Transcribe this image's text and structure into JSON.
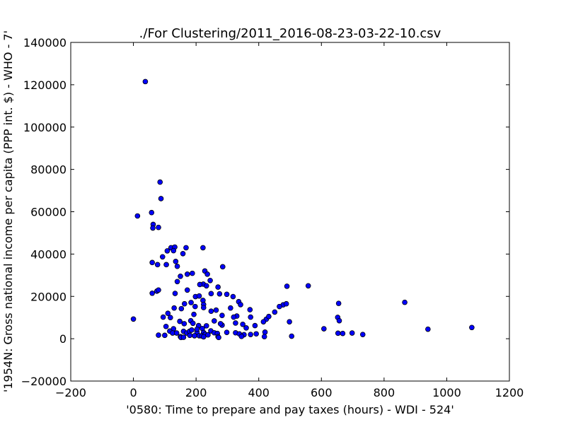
{
  "chart_data": {
    "type": "scatter",
    "title": "./For Clustering/2011_2016-08-23-03-22-10.csv",
    "xlabel": "'0580: Time to prepare and pay taxes  (hours) - WDI - 524'",
    "ylabel": "'1954N: Gross national income per capita (PPP int. $) - WHO - 7'",
    "xlim": [
      -200,
      1200
    ],
    "ylim": [
      -20000,
      140000
    ],
    "xticks": [
      "−200",
      "0",
      "200",
      "400",
      "600",
      "800",
      "1000",
      "1200"
    ],
    "yticks": [
      "−20000",
      "0",
      "20000",
      "40000",
      "60000",
      "80000",
      "100000",
      "120000",
      "140000"
    ],
    "grid": false,
    "marker_color": "#0000ff",
    "points": [
      [
        38,
        121500
      ],
      [
        85,
        74000
      ],
      [
        88,
        66200
      ],
      [
        13,
        58000
      ],
      [
        58,
        59600
      ],
      [
        63,
        54000
      ],
      [
        62,
        52300
      ],
      [
        80,
        52600
      ],
      [
        60,
        36000
      ],
      [
        77,
        35000
      ],
      [
        93,
        38700
      ],
      [
        105,
        35000
      ],
      [
        108,
        41500
      ],
      [
        120,
        43000
      ],
      [
        132,
        43300
      ],
      [
        128,
        41600
      ],
      [
        135,
        36500
      ],
      [
        140,
        34200
      ],
      [
        158,
        40200
      ],
      [
        168,
        43000
      ],
      [
        222,
        43000
      ],
      [
        172,
        30500
      ],
      [
        188,
        30900
      ],
      [
        228,
        32000
      ],
      [
        236,
        30500
      ],
      [
        285,
        34000
      ],
      [
        140,
        27000
      ],
      [
        150,
        29500
      ],
      [
        223,
        25800
      ],
      [
        212,
        25600
      ],
      [
        233,
        25000
      ],
      [
        245,
        27500
      ],
      [
        270,
        24400
      ],
      [
        490,
        24800
      ],
      [
        558,
        25000
      ],
      [
        60,
        21500
      ],
      [
        75,
        22500
      ],
      [
        80,
        23000
      ],
      [
        133,
        21400
      ],
      [
        172,
        23000
      ],
      [
        198,
        19900
      ],
      [
        210,
        20200
      ],
      [
        248,
        21300
      ],
      [
        275,
        21200
      ],
      [
        298,
        21000
      ],
      [
        318,
        19900
      ],
      [
        222,
        18100
      ],
      [
        163,
        16500
      ],
      [
        184,
        17100
      ],
      [
        224,
        16200
      ],
      [
        336,
        17500
      ],
      [
        342,
        16100
      ],
      [
        478,
        16000
      ],
      [
        488,
        16500
      ],
      [
        655,
        16700
      ],
      [
        866,
        17200
      ],
      [
        197,
        15200
      ],
      [
        153,
        14200
      ],
      [
        130,
        14500
      ],
      [
        110,
        12000
      ],
      [
        95,
        10200
      ],
      [
        118,
        10000
      ],
      [
        193,
        11500
      ],
      [
        224,
        14700
      ],
      [
        248,
        13000
      ],
      [
        264,
        13500
      ],
      [
        283,
        11000
      ],
      [
        310,
        14500
      ],
      [
        372,
        13700
      ],
      [
        451,
        12600
      ],
      [
        466,
        15200
      ],
      [
        330,
        10700
      ],
      [
        320,
        10200
      ],
      [
        374,
        10200
      ],
      [
        424,
        9200
      ],
      [
        415,
        8000
      ],
      [
        432,
        10500
      ],
      [
        498,
        8000
      ],
      [
        652,
        10100
      ],
      [
        657,
        8500
      ],
      [
        0,
        9300
      ],
      [
        148,
        8200
      ],
      [
        162,
        7100
      ],
      [
        183,
        8500
      ],
      [
        190,
        7300
      ],
      [
        208,
        6200
      ],
      [
        233,
        6100
      ],
      [
        258,
        8400
      ],
      [
        283,
        6400
      ],
      [
        278,
        7100
      ],
      [
        326,
        7400
      ],
      [
        349,
        6800
      ],
      [
        388,
        6200
      ],
      [
        360,
        5100
      ],
      [
        104,
        5800
      ],
      [
        128,
        4700
      ],
      [
        116,
        3600
      ],
      [
        125,
        2700
      ],
      [
        138,
        2700
      ],
      [
        160,
        3500
      ],
      [
        170,
        2700
      ],
      [
        179,
        3500
      ],
      [
        186,
        4100
      ],
      [
        203,
        3200
      ],
      [
        203,
        4500
      ],
      [
        220,
        4800
      ],
      [
        224,
        2900
      ],
      [
        229,
        2100
      ],
      [
        247,
        3700
      ],
      [
        258,
        2800
      ],
      [
        268,
        2500
      ],
      [
        298,
        3000
      ],
      [
        326,
        2800
      ],
      [
        338,
        2300
      ],
      [
        353,
        1900
      ],
      [
        374,
        2000
      ],
      [
        392,
        2300
      ],
      [
        420,
        3100
      ],
      [
        608,
        4700
      ],
      [
        653,
        2600
      ],
      [
        668,
        2500
      ],
      [
        698,
        2700
      ],
      [
        732,
        2000
      ],
      [
        940,
        4500
      ],
      [
        1080,
        5300
      ],
      [
        80,
        1700
      ],
      [
        100,
        1600
      ],
      [
        150,
        1000
      ],
      [
        152,
        600
      ],
      [
        160,
        700
      ],
      [
        180,
        1600
      ],
      [
        195,
        1400
      ],
      [
        210,
        1400
      ],
      [
        218,
        1300
      ],
      [
        238,
        1800
      ],
      [
        270,
        1000
      ],
      [
        272,
        600
      ],
      [
        345,
        1100
      ],
      [
        418,
        1000
      ],
      [
        505,
        1200
      ],
      [
        224,
        900
      ]
    ]
  }
}
